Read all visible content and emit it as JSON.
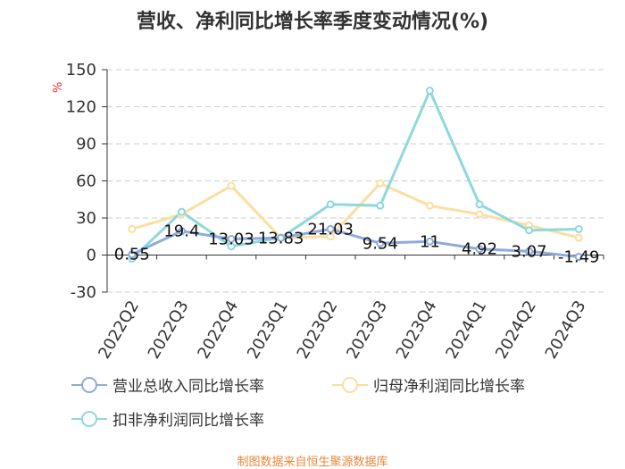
{
  "chart_data": {
    "type": "line",
    "title": "营收、净利同比增长率季度变动情况(%)",
    "ylabel": "%",
    "ylim": [
      -30,
      150
    ],
    "yticks": [
      -30,
      0,
      30,
      60,
      90,
      120,
      150
    ],
    "categories": [
      "2022Q2",
      "2022Q3",
      "2022Q4",
      "2023Q1",
      "2023Q2",
      "2023Q3",
      "2023Q4",
      "2024Q1",
      "2024Q2",
      "2024Q3"
    ],
    "series": [
      {
        "name": "营业总收入同比增长率",
        "color": "#8faadc",
        "values": [
          0.55,
          19.4,
          13.03,
          13.83,
          21.03,
          9.54,
          11,
          4.92,
          3.07,
          -1.49
        ],
        "labels": [
          "0.55",
          "19.4",
          "13.03",
          "13.83",
          "21.03",
          "9.54",
          "11",
          "4.92",
          "3.07",
          "-1.49"
        ]
      },
      {
        "name": "归母净利润同比增长率",
        "color": "#fbdfa0",
        "values": [
          21,
          33,
          56,
          14,
          15,
          58,
          40,
          33,
          24,
          14
        ]
      },
      {
        "name": "扣非净利润同比增长率",
        "color": "#8fd8dc",
        "values": [
          -3,
          35,
          7,
          14,
          41,
          40,
          133,
          41,
          20,
          21
        ]
      }
    ],
    "legend_position": "bottom"
  },
  "footer": "制图数据来自恒生聚源数据库"
}
